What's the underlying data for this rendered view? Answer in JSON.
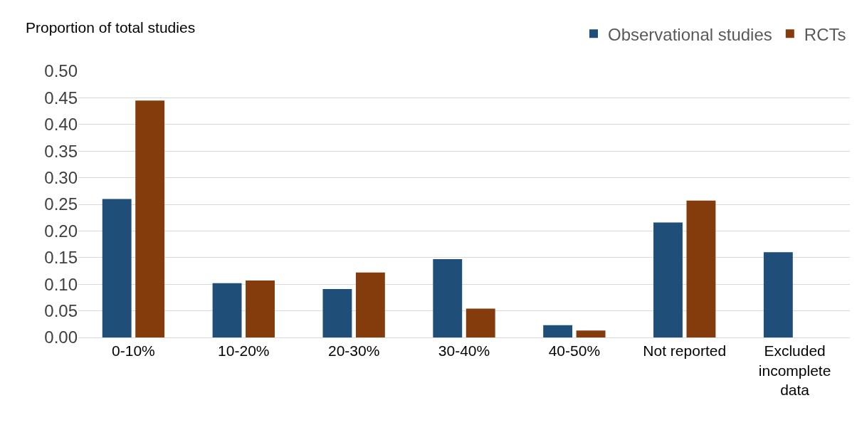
{
  "chart_data": {
    "type": "bar",
    "ylabel": "Proportion of total studies",
    "categories": [
      "0-10%",
      "10-20%",
      "20-30%",
      "30-40%",
      "40-50%",
      "Not reported",
      "Excluded incomplete data"
    ],
    "series": [
      {
        "name": "Observational studies",
        "color": "#1f4e79",
        "values": [
          0.26,
          0.102,
          0.091,
          0.147,
          0.023,
          0.216,
          0.16
        ]
      },
      {
        "name": "RCTs",
        "color": "#843c0c",
        "values": [
          0.445,
          0.107,
          0.122,
          0.054,
          0.013,
          0.257,
          null
        ]
      }
    ],
    "ylim": [
      0,
      0.5
    ],
    "yticks": [
      {
        "value": 0,
        "label": "0.00"
      },
      {
        "value": 0.05,
        "label": "0.05"
      },
      {
        "value": 0.1,
        "label": "0.10"
      },
      {
        "value": 0.15,
        "label": "0.15"
      },
      {
        "value": 0.2,
        "label": "0.20"
      },
      {
        "value": 0.25,
        "label": "0.25"
      },
      {
        "value": 0.3,
        "label": "0.30"
      },
      {
        "value": 0.35,
        "label": "0.35"
      },
      {
        "value": 0.4,
        "label": "0.40"
      },
      {
        "value": 0.45,
        "label": "0.45"
      },
      {
        "value": 0.5,
        "label": "0.50"
      }
    ],
    "grid": "y",
    "legend": "top right"
  }
}
